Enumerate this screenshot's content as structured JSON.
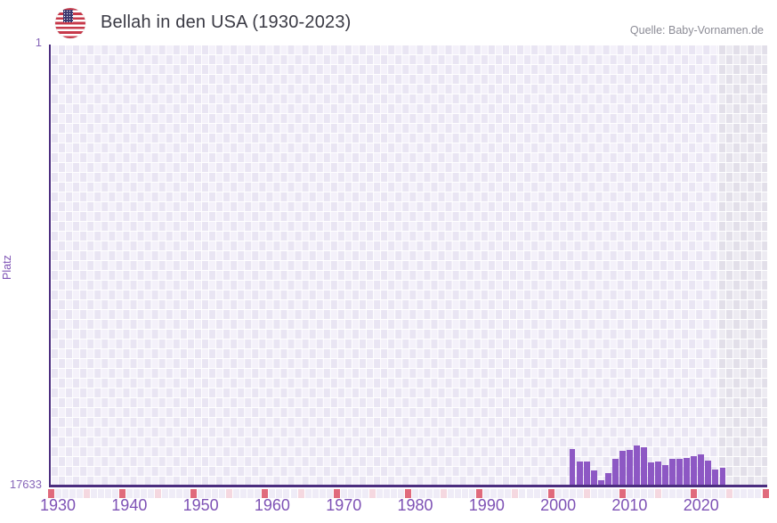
{
  "header": {
    "title": "Bellah in den USA (1930-2023)",
    "source": "Quelle: Baby-Vornamen.de",
    "flag": "us-flag"
  },
  "y_axis": {
    "title": "Platz",
    "top_label": "1",
    "bottom_label": "17633"
  },
  "chart_data": {
    "type": "bar",
    "title": "Bellah in den USA (1930-2023)",
    "ylabel": "Platz",
    "y_range": [
      1,
      17633
    ],
    "y_inverted": true,
    "grid": "checkerboard",
    "x_range_years": [
      1929,
      2029
    ],
    "x_tick_years": [
      1930,
      1940,
      1950,
      1960,
      1970,
      1980,
      1990,
      2000,
      2010,
      2020
    ],
    "no_data_band_from_year": 2023.5,
    "decade_strip": {
      "red_every": 10,
      "pink_offset": 5,
      "start_year": 1929
    },
    "series": [
      {
        "name": "Bellah",
        "points": [
          {
            "year": 2002,
            "rank": 16190
          },
          {
            "year": 2003,
            "rank": 16690
          },
          {
            "year": 2004,
            "rank": 16720
          },
          {
            "year": 2005,
            "rank": 17070
          },
          {
            "year": 2006,
            "rank": 17440
          },
          {
            "year": 2007,
            "rank": 17180
          },
          {
            "year": 2008,
            "rank": 16590
          },
          {
            "year": 2009,
            "rank": 16280
          },
          {
            "year": 2010,
            "rank": 16240
          },
          {
            "year": 2011,
            "rank": 16060
          },
          {
            "year": 2012,
            "rank": 16140
          },
          {
            "year": 2013,
            "rank": 16740
          },
          {
            "year": 2014,
            "rank": 16720
          },
          {
            "year": 2015,
            "rank": 16860
          },
          {
            "year": 2016,
            "rank": 16600
          },
          {
            "year": 2017,
            "rank": 16600
          },
          {
            "year": 2018,
            "rank": 16570
          },
          {
            "year": 2019,
            "rank": 16500
          },
          {
            "year": 2020,
            "rank": 16420
          },
          {
            "year": 2021,
            "rank": 16670
          },
          {
            "year": 2022,
            "rank": 17040
          },
          {
            "year": 2023,
            "rank": 16940
          }
        ]
      }
    ]
  },
  "colors": {
    "bar": "#8d58c4",
    "axis_line": "#4b2d7f",
    "x_tick_label": "#7e52b5",
    "y_tick_label": "#8766b9",
    "checker_dark": "#e9e5f3",
    "checker_light": "#f4f1fa",
    "no_data_dark": "#e2dfe9",
    "no_data_light": "#edebf2",
    "strip_plain": "#efecf7",
    "strip_red": "#e06a7c",
    "strip_pink": "#f5d8e0",
    "title_text": "#3a3a44",
    "source_text": "#8c8c96"
  }
}
